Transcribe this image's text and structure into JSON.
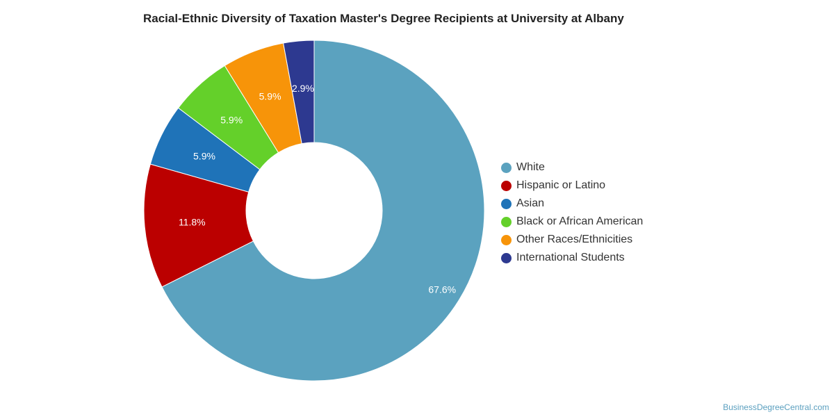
{
  "chart_data": {
    "type": "pie",
    "title": "Racial-Ethnic Diversity of Taxation Master's Degree Recipients at University at Albany",
    "donut": true,
    "legend_position": "right",
    "slices": [
      {
        "label": "White",
        "value": 67.6,
        "value_label": "67.6%",
        "color": "#5ba2bf"
      },
      {
        "label": "Hispanic or Latino",
        "value": 11.8,
        "value_label": "11.8%",
        "color": "#bb0000"
      },
      {
        "label": "Asian",
        "value": 5.9,
        "value_label": "5.9%",
        "color": "#1f73b8"
      },
      {
        "label": "Black or African American",
        "value": 5.9,
        "value_label": "5.9%",
        "color": "#64d02a"
      },
      {
        "label": "Other Races/Ethnicities",
        "value": 5.9,
        "value_label": "5.9%",
        "color": "#f79409"
      },
      {
        "label": "International Students",
        "value": 2.9,
        "value_label": "2.9%",
        "color": "#2d3990"
      }
    ]
  },
  "watermark": "BusinessDegreeCentral.com"
}
